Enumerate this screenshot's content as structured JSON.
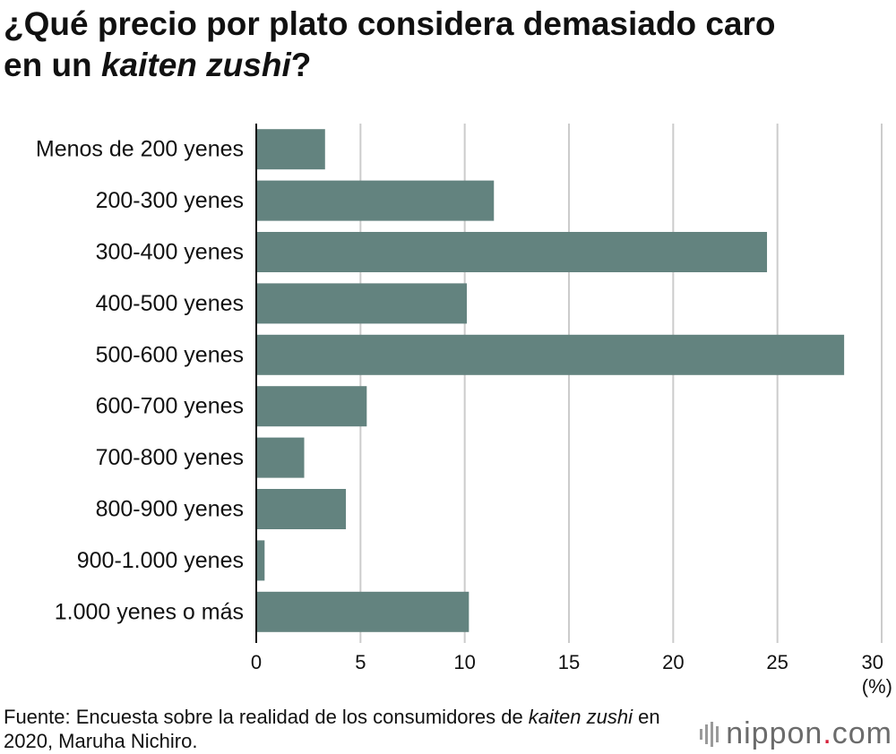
{
  "title": {
    "line1": "¿Qué precio por plato considera demasiado caro",
    "line2_prefix": "en un ",
    "line2_em": "kaiten zushi",
    "line2_suffix": "?"
  },
  "chart_data": {
    "type": "bar",
    "orientation": "horizontal",
    "categories": [
      "Menos de 200 yenes",
      "200-300 yenes",
      "300-400 yenes",
      "400-500 yenes",
      "500-600 yenes",
      "600-700 yenes",
      "700-800 yenes",
      "800-900 yenes",
      "900-1.000 yenes",
      "1.000 yenes o más"
    ],
    "values": [
      3.3,
      11.4,
      24.5,
      10.1,
      28.2,
      5.3,
      2.3,
      4.3,
      0.4,
      10.2
    ],
    "xlim": [
      0,
      30
    ],
    "xticks": [
      "0",
      "5",
      "10",
      "15",
      "20",
      "25",
      "30"
    ],
    "xunit": "(%)",
    "grid": true,
    "bar_color": "#63837f",
    "grid_color": "#cccccc"
  },
  "source": {
    "prefix": "Fuente: Encuesta sobre la realidad de los consumidores de ",
    "em": "kaiten zushi",
    "suffix": " en 2020, Maruha Nichiro."
  },
  "logo": {
    "name": "nippon",
    "dot": ".",
    "tld": "com",
    "dot_color": "#d6203a"
  }
}
